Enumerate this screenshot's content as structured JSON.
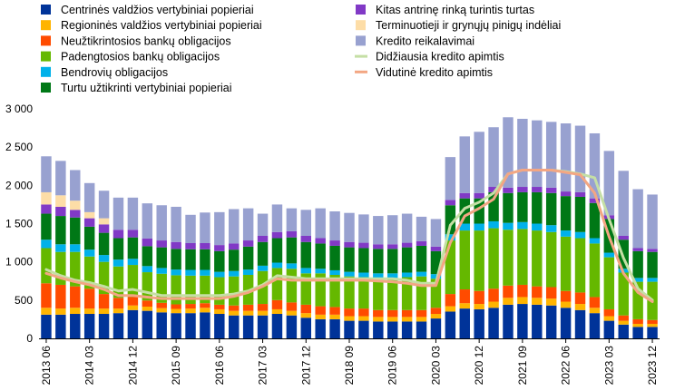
{
  "chart_data": {
    "type": "bar",
    "stacked": true,
    "title": "",
    "xlabel": "",
    "ylabel": "",
    "ylim": [
      0,
      3000
    ],
    "yticks": [
      0,
      500,
      1000,
      1500,
      2000,
      2500,
      3000
    ],
    "ytick_labels": [
      "0",
      "500",
      "1 000",
      "1 500",
      "2 000",
      "2 500",
      "3 000"
    ],
    "grid": false,
    "legend_position": "top",
    "categories": [
      "2013 06",
      "2013 09",
      "2013 12",
      "2014 03",
      "2014 06",
      "2014 09",
      "2014 12",
      "2015 03",
      "2015 06",
      "2015 09",
      "2015 12",
      "2016 03",
      "2016 06",
      "2016 09",
      "2016 12",
      "2017 03",
      "2017 06",
      "2017 09",
      "2017 12",
      "2018 03",
      "2018 06",
      "2018 09",
      "2018 12",
      "2019 03",
      "2019 06",
      "2019 09",
      "2019 12",
      "2020 03",
      "2020 06",
      "2020 09",
      "2020 12",
      "2021 03",
      "2021 06",
      "2021 09",
      "2021 12",
      "2022 03",
      "2022 06",
      "2022 09",
      "2022 12",
      "2023 03",
      "2023 06",
      "2023 09",
      "2023 12"
    ],
    "x_tick_labels": [
      "2013 06",
      "2014 03",
      "2014 12",
      "2015 09",
      "2016 06",
      "2017 03",
      "2017 12",
      "2018 09",
      "2019 06",
      "2020 03",
      "2020 12",
      "2021 09",
      "2022 06",
      "2023 03",
      "2023 12"
    ],
    "series": [
      {
        "name": "Centrinės valdžios vertybiniai popieriai",
        "color": "#003399",
        "values": [
          310,
          310,
          320,
          320,
          320,
          330,
          370,
          360,
          340,
          330,
          330,
          340,
          320,
          300,
          300,
          300,
          320,
          300,
          270,
          250,
          250,
          230,
          230,
          220,
          220,
          220,
          220,
          260,
          350,
          390,
          380,
          400,
          440,
          450,
          440,
          430,
          400,
          370,
          330,
          230,
          180,
          150,
          150
        ]
      },
      {
        "name": "Regioninės valdžios vertybiniai popieriai",
        "color": "#FFB400",
        "values": [
          90,
          80,
          80,
          70,
          70,
          60,
          60,
          55,
          55,
          55,
          60,
          60,
          60,
          60,
          60,
          60,
          60,
          60,
          60,
          60,
          60,
          60,
          60,
          60,
          60,
          60,
          60,
          60,
          70,
          70,
          70,
          80,
          90,
          90,
          90,
          90,
          80,
          80,
          70,
          60,
          50,
          40,
          40
        ]
      },
      {
        "name": "Neužtikrintosios bankų obligacijos",
        "color": "#FF4B00",
        "values": [
          320,
          310,
          280,
          260,
          190,
          140,
          110,
          80,
          70,
          60,
          60,
          60,
          60,
          70,
          80,
          90,
          120,
          110,
          110,
          110,
          100,
          100,
          100,
          90,
          90,
          90,
          90,
          80,
          160,
          180,
          170,
          170,
          160,
          160,
          150,
          150,
          140,
          150,
          140,
          90,
          70,
          60,
          50
        ]
      },
      {
        "name": "Padengtosios bankų obligacijos",
        "color": "#65B800",
        "values": [
          460,
          430,
          450,
          420,
          420,
          410,
          420,
          370,
          380,
          380,
          370,
          360,
          360,
          380,
          390,
          430,
          420,
          440,
          410,
          430,
          420,
          420,
          410,
          420,
          420,
          430,
          440,
          380,
          700,
          770,
          790,
          790,
          730,
          730,
          730,
          720,
          710,
          710,
          700,
          680,
          560,
          490,
          500
        ]
      },
      {
        "name": "Bendrovių obligacijos",
        "color": "#00B1EA",
        "values": [
          110,
          100,
          100,
          90,
          90,
          90,
          80,
          80,
          75,
          75,
          75,
          75,
          70,
          70,
          70,
          70,
          70,
          70,
          70,
          60,
          60,
          60,
          60,
          60,
          60,
          60,
          60,
          60,
          80,
          90,
          90,
          90,
          90,
          90,
          90,
          90,
          80,
          80,
          70,
          60,
          50,
          50,
          50
        ]
      },
      {
        "name": "Turtu užtikrinti vertybiniai popieriai",
        "color": "#007816",
        "values": [
          340,
          370,
          350,
          300,
          290,
          280,
          280,
          260,
          270,
          270,
          270,
          270,
          270,
          280,
          300,
          310,
          320,
          340,
          340,
          330,
          320,
          320,
          320,
          320,
          320,
          330,
          340,
          300,
          380,
          330,
          330,
          380,
          390,
          390,
          410,
          420,
          450,
          460,
          460,
          440,
          380,
          350,
          340
        ]
      },
      {
        "name": "Kitas antrinę rinką turintis turtas",
        "color": "#8139C6",
        "values": [
          120,
          120,
          100,
          110,
          110,
          110,
          100,
          100,
          90,
          90,
          80,
          80,
          80,
          80,
          80,
          80,
          80,
          80,
          80,
          70,
          70,
          70,
          70,
          60,
          60,
          60,
          60,
          60,
          70,
          70,
          70,
          70,
          70,
          70,
          70,
          70,
          60,
          60,
          60,
          50,
          50,
          40,
          40
        ]
      },
      {
        "name": "Terminuotieji ir grynųjų pinigų indėliai",
        "color": "#FDDDA7",
        "values": [
          160,
          150,
          120,
          80,
          80,
          0,
          0,
          0,
          0,
          0,
          0,
          0,
          0,
          0,
          0,
          0,
          0,
          0,
          0,
          0,
          0,
          0,
          0,
          0,
          0,
          0,
          0,
          0,
          0,
          0,
          0,
          0,
          0,
          0,
          0,
          0,
          0,
          0,
          0,
          0,
          0,
          0,
          0
        ]
      },
      {
        "name": "Kredito reikalavimai",
        "color": "#98A1D0",
        "values": [
          470,
          450,
          400,
          380,
          360,
          420,
          420,
          460,
          460,
          460,
          370,
          400,
          430,
          450,
          420,
          290,
          360,
          300,
          340,
          390,
          380,
          380,
          370,
          370,
          380,
          380,
          320,
          360,
          560,
          740,
          800,
          780,
          920,
          890,
          870,
          860,
          890,
          870,
          850,
          840,
          850,
          770,
          710
        ]
      }
    ],
    "lines": [
      {
        "name": "Didžiausia kredito apimtis",
        "color": "#C5DFA5",
        "values": [
          900,
          820,
          760,
          730,
          680,
          620,
          640,
          600,
          560,
          560,
          560,
          560,
          560,
          580,
          620,
          700,
          820,
          800,
          780,
          780,
          780,
          780,
          780,
          780,
          780,
          760,
          720,
          720,
          1480,
          1700,
          1780,
          1900,
          2150,
          2200,
          2200,
          2200,
          2180,
          2150,
          2100,
          1560,
          1050,
          650,
          500
        ]
      },
      {
        "name": "Vidutinė kredito apimtis",
        "color": "#F3A683",
        "values": [
          850,
          790,
          740,
          700,
          640,
          560,
          560,
          540,
          520,
          520,
          520,
          520,
          520,
          550,
          600,
          680,
          780,
          760,
          760,
          760,
          760,
          760,
          760,
          750,
          740,
          720,
          690,
          690,
          1250,
          1600,
          1700,
          1820,
          2150,
          2200,
          2200,
          2200,
          2170,
          2140,
          1900,
          1330,
          850,
          600,
          480
        ]
      }
    ]
  }
}
